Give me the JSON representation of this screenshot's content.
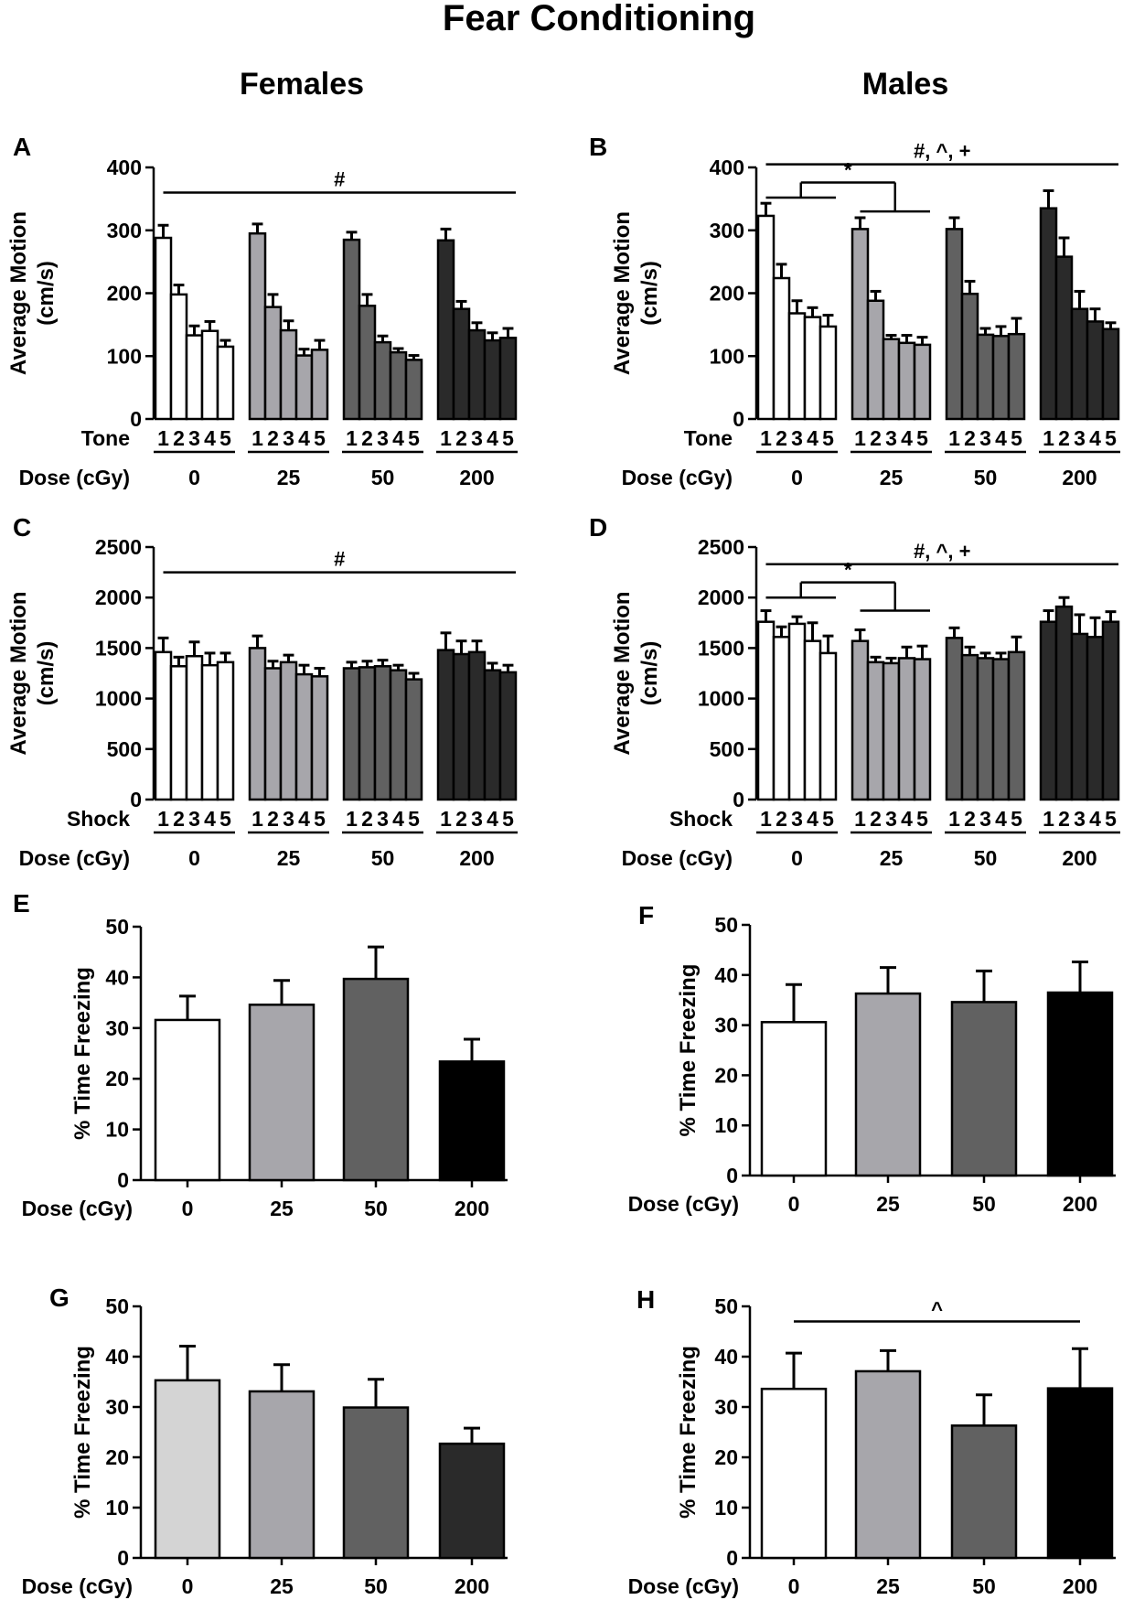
{
  "figure": {
    "title": "Fear Conditioning",
    "col_left": "Females",
    "col_right": "Males",
    "colors": {
      "d0": "#ffffff",
      "d25": "#a7a6ab",
      "d50": "#616161",
      "d200": "#2a2a2a",
      "black": "#000000",
      "lightgray": "#d4d4d4"
    }
  },
  "chart_data": [
    {
      "panel": "A",
      "type": "bar",
      "variant": "grouped",
      "ylabel": [
        "Average Motion",
        "(cm/s)"
      ],
      "ylim": [
        0,
        400
      ],
      "yticks": [
        0,
        100,
        200,
        300,
        400
      ],
      "trial_label": "Tone",
      "dose_label": "Dose (cGy)",
      "trial_ticks": [
        "1",
        "2",
        "3",
        "4",
        "5"
      ],
      "groups": [
        {
          "dose": "0",
          "color": "d0",
          "values": [
            288,
            198,
            133,
            140,
            115
          ],
          "errors": [
            20,
            15,
            15,
            15,
            10
          ]
        },
        {
          "dose": "25",
          "color": "d25",
          "values": [
            295,
            178,
            141,
            101,
            110
          ],
          "errors": [
            15,
            20,
            15,
            10,
            15
          ]
        },
        {
          "dose": "50",
          "color": "d50",
          "values": [
            285,
            180,
            122,
            106,
            94
          ],
          "errors": [
            12,
            18,
            10,
            6,
            7
          ]
        },
        {
          "dose": "200",
          "color": "d200",
          "values": [
            284,
            175,
            141,
            125,
            129
          ],
          "errors": [
            18,
            12,
            12,
            12,
            15
          ]
        }
      ],
      "annotations": [
        {
          "text": "#",
          "y": 360,
          "from": [
            0,
            0
          ],
          "to": [
            3,
            4
          ]
        }
      ],
      "brackets": []
    },
    {
      "panel": "B",
      "type": "bar",
      "variant": "grouped",
      "ylabel": [
        "Average Motion",
        "(cm/s)"
      ],
      "ylim": [
        0,
        400
      ],
      "yticks": [
        0,
        100,
        200,
        300,
        400
      ],
      "trial_label": "Tone",
      "dose_label": "Dose (cGy)",
      "trial_ticks": [
        "1",
        "2",
        "3",
        "4",
        "5"
      ],
      "groups": [
        {
          "dose": "0",
          "color": "d0",
          "values": [
            323,
            224,
            168,
            162,
            147
          ],
          "errors": [
            20,
            22,
            20,
            15,
            18
          ]
        },
        {
          "dose": "25",
          "color": "d25",
          "values": [
            302,
            188,
            127,
            121,
            118
          ],
          "errors": [
            18,
            15,
            6,
            12,
            12
          ]
        },
        {
          "dose": "50",
          "color": "d50",
          "values": [
            302,
            199,
            134,
            132,
            135
          ],
          "errors": [
            18,
            20,
            10,
            15,
            25
          ]
        },
        {
          "dose": "200",
          "color": "d200",
          "values": [
            335,
            258,
            175,
            155,
            143
          ],
          "errors": [
            28,
            30,
            28,
            20,
            10
          ]
        }
      ],
      "annotations": [
        {
          "text": "#, ^, +",
          "y": 405,
          "from": [
            0,
            0
          ],
          "to": [
            3,
            4
          ]
        }
      ],
      "brackets": [
        {
          "text": "*",
          "y": 376,
          "left": {
            "g": 0,
            "y": 352
          },
          "right": {
            "g": 1,
            "y": 330
          }
        }
      ]
    },
    {
      "panel": "C",
      "type": "bar",
      "variant": "grouped",
      "ylabel": [
        "Average Motion",
        "(cm/s)"
      ],
      "ylim": [
        0,
        2500
      ],
      "yticks": [
        0,
        500,
        1000,
        1500,
        2000,
        2500
      ],
      "trial_label": "Shock",
      "dose_label": "Dose (cGy)",
      "trial_ticks": [
        "1",
        "2",
        "3",
        "4",
        "5"
      ],
      "groups": [
        {
          "dose": "0",
          "color": "d0",
          "values": [
            1460,
            1320,
            1420,
            1330,
            1360
          ],
          "errors": [
            140,
            90,
            140,
            120,
            90
          ]
        },
        {
          "dose": "25",
          "color": "d25",
          "values": [
            1500,
            1300,
            1360,
            1240,
            1220
          ],
          "errors": [
            120,
            70,
            70,
            90,
            80
          ]
        },
        {
          "dose": "50",
          "color": "d50",
          "values": [
            1300,
            1310,
            1320,
            1280,
            1190
          ],
          "errors": [
            60,
            60,
            60,
            50,
            60
          ]
        },
        {
          "dose": "200",
          "color": "d200",
          "values": [
            1480,
            1440,
            1460,
            1280,
            1260
          ],
          "errors": [
            170,
            130,
            110,
            70,
            70
          ]
        }
      ],
      "annotations": [
        {
          "text": "#",
          "y": 2250,
          "from": [
            0,
            0
          ],
          "to": [
            3,
            4
          ]
        }
      ],
      "brackets": []
    },
    {
      "panel": "D",
      "type": "bar",
      "variant": "grouped",
      "ylabel": [
        "Average Motion",
        "(cm/s)"
      ],
      "ylim": [
        0,
        2500
      ],
      "yticks": [
        0,
        500,
        1000,
        1500,
        2000,
        2500
      ],
      "trial_label": "Shock",
      "dose_label": "Dose (cGy)",
      "trial_ticks": [
        "1",
        "2",
        "3",
        "4",
        "5"
      ],
      "groups": [
        {
          "dose": "0",
          "color": "d0",
          "values": [
            1760,
            1610,
            1740,
            1570,
            1450
          ],
          "errors": [
            110,
            100,
            70,
            180,
            170
          ]
        },
        {
          "dose": "25",
          "color": "d25",
          "values": [
            1570,
            1360,
            1350,
            1400,
            1390
          ],
          "errors": [
            110,
            50,
            50,
            110,
            130
          ]
        },
        {
          "dose": "50",
          "color": "d50",
          "values": [
            1600,
            1430,
            1400,
            1390,
            1460
          ],
          "errors": [
            100,
            80,
            50,
            60,
            150
          ]
        },
        {
          "dose": "200",
          "color": "d200",
          "values": [
            1760,
            1910,
            1640,
            1610,
            1760
          ],
          "errors": [
            110,
            90,
            190,
            190,
            100
          ]
        }
      ],
      "annotations": [
        {
          "text": "#, ^, +",
          "y": 2330,
          "from": [
            0,
            0
          ],
          "to": [
            3,
            4
          ]
        }
      ],
      "brackets": [
        {
          "text": "*",
          "y": 2150,
          "left": {
            "g": 0,
            "y": 2000
          },
          "right": {
            "g": 1,
            "y": 1870
          }
        }
      ]
    },
    {
      "panel": "E",
      "type": "bar",
      "variant": "simple",
      "ylabel": [
        "% Time Freezing"
      ],
      "ylim": [
        0,
        50
      ],
      "yticks": [
        0,
        10,
        20,
        30,
        40,
        50
      ],
      "xlabel": "Dose (cGy)",
      "categories": [
        "0",
        "25",
        "50",
        "200"
      ],
      "colors": [
        "d0",
        "d25",
        "d50",
        "black"
      ],
      "values": [
        31.6,
        34.6,
        39.7,
        23.4
      ],
      "errors": [
        4.7,
        4.8,
        6.3,
        4.4
      ],
      "annotations": []
    },
    {
      "panel": "F",
      "type": "bar",
      "variant": "simple",
      "ylabel": [
        "% Time Freezing"
      ],
      "ylim": [
        0,
        50
      ],
      "yticks": [
        0,
        10,
        20,
        30,
        40,
        50
      ],
      "xlabel": "Dose (cGy)",
      "categories": [
        "0",
        "25",
        "50",
        "200"
      ],
      "colors": [
        "d0",
        "d25",
        "d50",
        "black"
      ],
      "values": [
        30.6,
        36.3,
        34.6,
        36.5
      ],
      "errors": [
        7.5,
        5.2,
        6.2,
        6.1
      ],
      "annotations": []
    },
    {
      "panel": "G",
      "type": "bar",
      "variant": "simple",
      "ylabel": [
        "% Time Freezing"
      ],
      "ylim": [
        0,
        50
      ],
      "yticks": [
        0,
        10,
        20,
        30,
        40,
        50
      ],
      "xlabel": "Dose (cGy)",
      "categories": [
        "0",
        "25",
        "50",
        "200"
      ],
      "colors": [
        "lightgray",
        "d25",
        "d50",
        "d200"
      ],
      "values": [
        35.3,
        33.1,
        29.9,
        22.7
      ],
      "errors": [
        6.8,
        5.3,
        5.6,
        3.1
      ],
      "annotations": []
    },
    {
      "panel": "H",
      "type": "bar",
      "variant": "simple",
      "ylabel": [
        "% Time Freezing"
      ],
      "ylim": [
        0,
        50
      ],
      "yticks": [
        0,
        10,
        20,
        30,
        40,
        50
      ],
      "xlabel": "Dose (cGy)",
      "categories": [
        "0",
        "25",
        "50",
        "200"
      ],
      "colors": [
        "d0",
        "d25",
        "d50",
        "black"
      ],
      "values": [
        33.6,
        37.1,
        26.3,
        33.7
      ],
      "errors": [
        7.1,
        4.1,
        6.1,
        7.9
      ],
      "annotations": [
        {
          "text": "^",
          "y": 47,
          "from": 0,
          "to": 3
        }
      ]
    }
  ]
}
